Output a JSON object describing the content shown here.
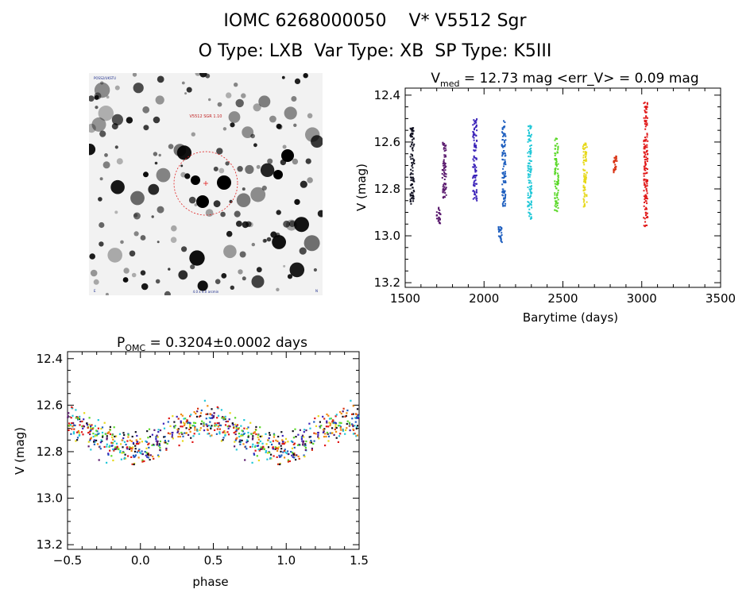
{
  "header": {
    "line1_source": "IOMC 6268000050",
    "line1_name": "V* V5512 Sgr",
    "line2": "O Type: LXB  Var Type: XB  SP Type: K5III"
  },
  "stamp": {
    "top_label": "V5512 SGR 1.10",
    "top_left_tag": "POSS2/UKSTU",
    "bottom_label": "4.0 x 4.0 arcmin",
    "bottom_left_tag": "E",
    "bottom_right_tag": "N"
  },
  "colors": {
    "sequence": [
      "#101020",
      "#5a1a6e",
      "#3a22b8",
      "#1f5fbf",
      "#22c8d8",
      "#5ad828",
      "#e6d818",
      "#f08a10",
      "#d83010",
      "#e01818"
    ],
    "marker_ring": "#e02020"
  },
  "chart_data": [
    {
      "type": "scatter",
      "id": "light_curve",
      "title_main": "V",
      "title_sub": "med",
      "title_rest": " = 12.73 mag <err_V> = 0.09 mag",
      "xlabel": "Barytime (days)",
      "ylabel": "V (mag)",
      "xlim": [
        1500,
        3500
      ],
      "ylim": [
        13.22,
        12.37
      ],
      "xticks": [
        1500,
        2000,
        2500,
        3000,
        3500
      ],
      "yticks": [
        12.4,
        12.6,
        12.8,
        13.0,
        13.2
      ],
      "ytick_labels": [
        "12.4",
        "12.6",
        "12.8",
        "13.0",
        "13.2"
      ],
      "series": [
        {
          "x": 1545,
          "range": [
            12.54,
            12.87
          ],
          "center": 12.68,
          "color_index": 0
        },
        {
          "x": 1712,
          "range": [
            12.88,
            12.95
          ],
          "center": 12.91,
          "color_index": 1
        },
        {
          "x": 1748,
          "range": [
            12.6,
            12.84
          ],
          "center": 12.74,
          "color_index": 1
        },
        {
          "x": 1942,
          "range": [
            12.5,
            12.85
          ],
          "center": 12.65,
          "color_index": 2
        },
        {
          "x": 2102,
          "range": [
            12.96,
            13.03
          ],
          "center": 12.98,
          "color_index": 3
        },
        {
          "x": 2125,
          "range": [
            12.51,
            12.88
          ],
          "center": 12.7,
          "color_index": 3
        },
        {
          "x": 2290,
          "range": [
            12.53,
            12.93
          ],
          "center": 12.7,
          "color_index": 4
        },
        {
          "x": 2460,
          "range": [
            12.58,
            12.9
          ],
          "center": 12.76,
          "color_index": 5
        },
        {
          "x": 2640,
          "range": [
            12.6,
            12.88
          ],
          "center": 12.75,
          "color_index": 6
        },
        {
          "x": 2830,
          "range": [
            12.66,
            12.73
          ],
          "center": 12.7,
          "color_index": 8
        },
        {
          "x": 3025,
          "range": [
            12.43,
            12.96
          ],
          "center": 12.73,
          "color_index": 9
        }
      ]
    },
    {
      "type": "scatter",
      "id": "folded_curve",
      "title_main": "P",
      "title_sub": "OMC",
      "title_rest": " = 0.3204±0.0002 days",
      "xlabel": "phase",
      "ylabel": "V (mag)",
      "xlim": [
        -0.5,
        1.5
      ],
      "ylim": [
        13.22,
        12.37
      ],
      "xticks": [
        -0.5,
        0.0,
        0.5,
        1.0,
        1.5
      ],
      "xtick_labels": [
        "−0.5",
        "0.0",
        "0.5",
        "1.0",
        "1.5"
      ],
      "yticks": [
        12.4,
        12.6,
        12.8,
        13.0,
        13.2
      ],
      "ytick_labels": [
        "12.4",
        "12.6",
        "12.8",
        "13.0",
        "13.2"
      ],
      "period_days": 0.3204,
      "mean_mag": 12.73,
      "amplitude_mag": 0.06,
      "scatter_mag": 0.09,
      "brightest_phase": 0.45,
      "faintest_phase": 0.92
    }
  ]
}
